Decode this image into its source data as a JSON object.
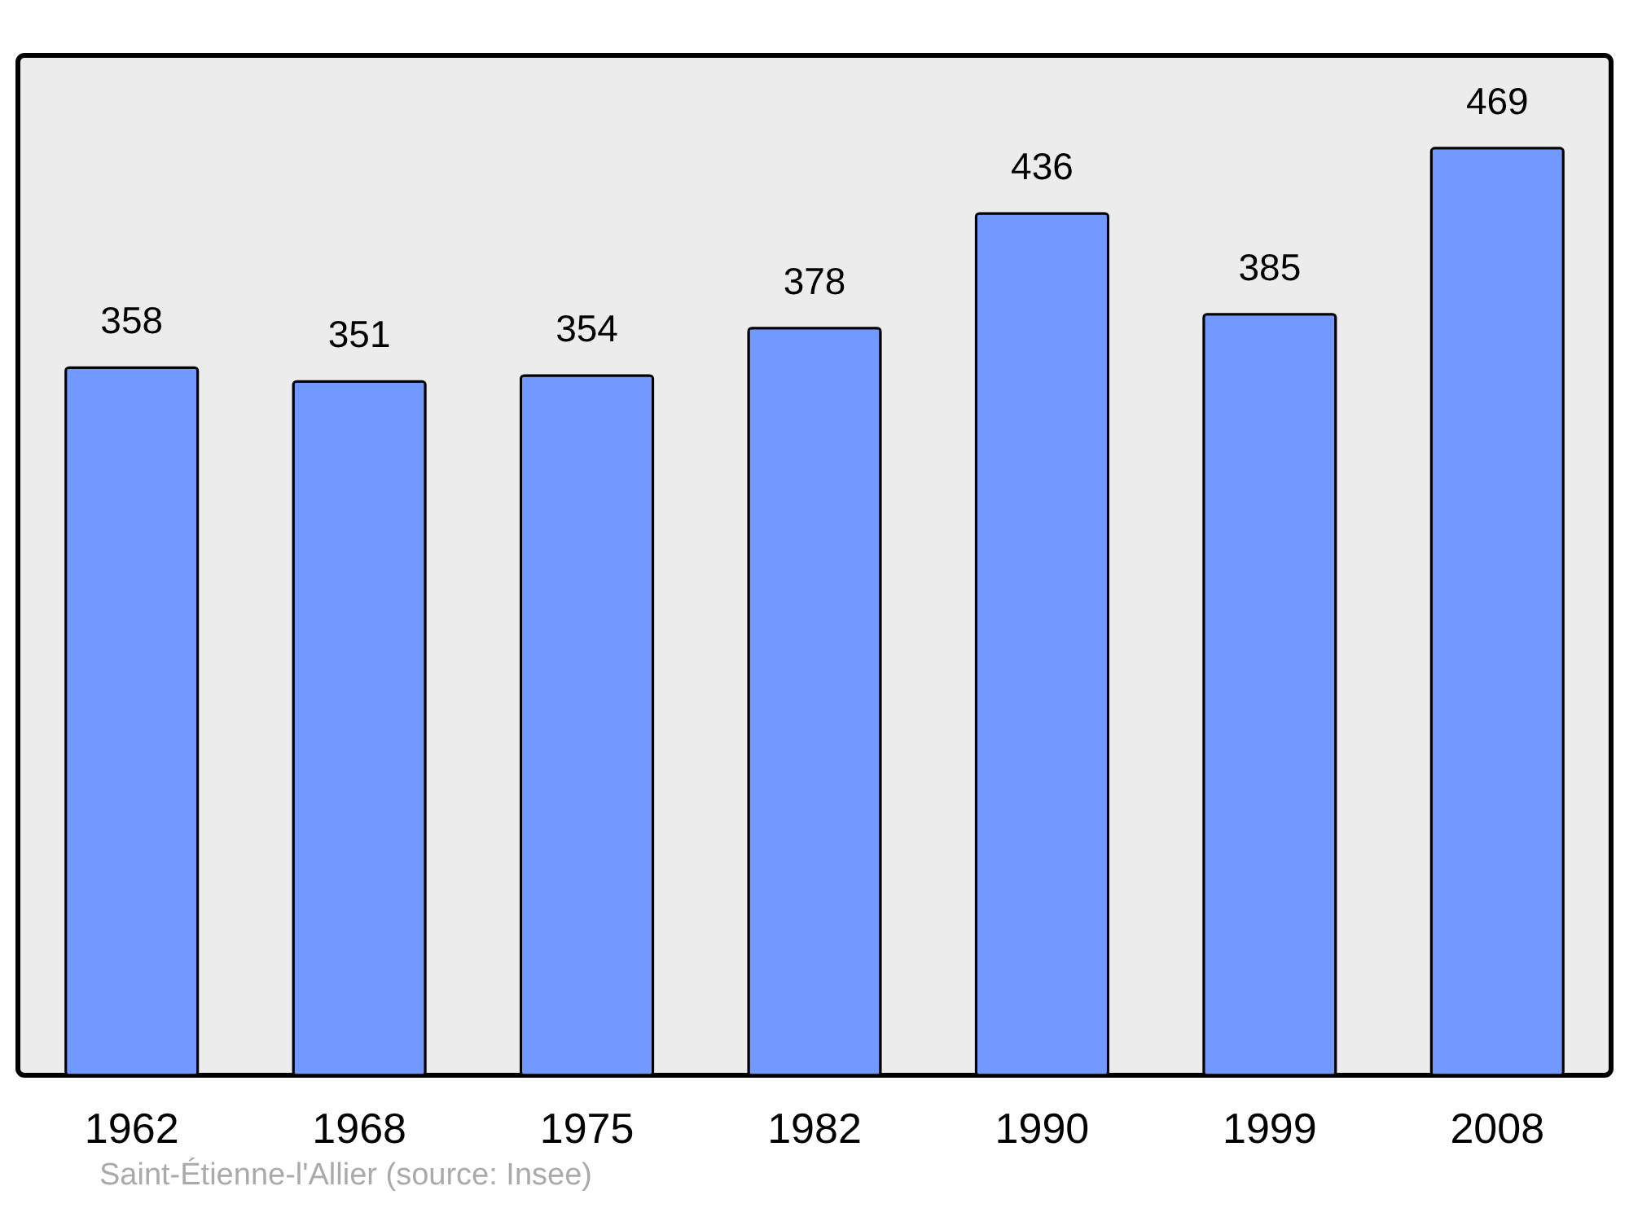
{
  "chart_data": {
    "type": "bar",
    "categories": [
      "1962",
      "1968",
      "1975",
      "1982",
      "1990",
      "1999",
      "2008"
    ],
    "values": [
      358,
      351,
      354,
      378,
      436,
      385,
      469
    ],
    "color": "#7299ff",
    "data_labels": true,
    "tick_labels": "x",
    "grid": false,
    "annotations": [
      "Saint-Étienne-l'Allier    (source: Insee)"
    ]
  }
}
